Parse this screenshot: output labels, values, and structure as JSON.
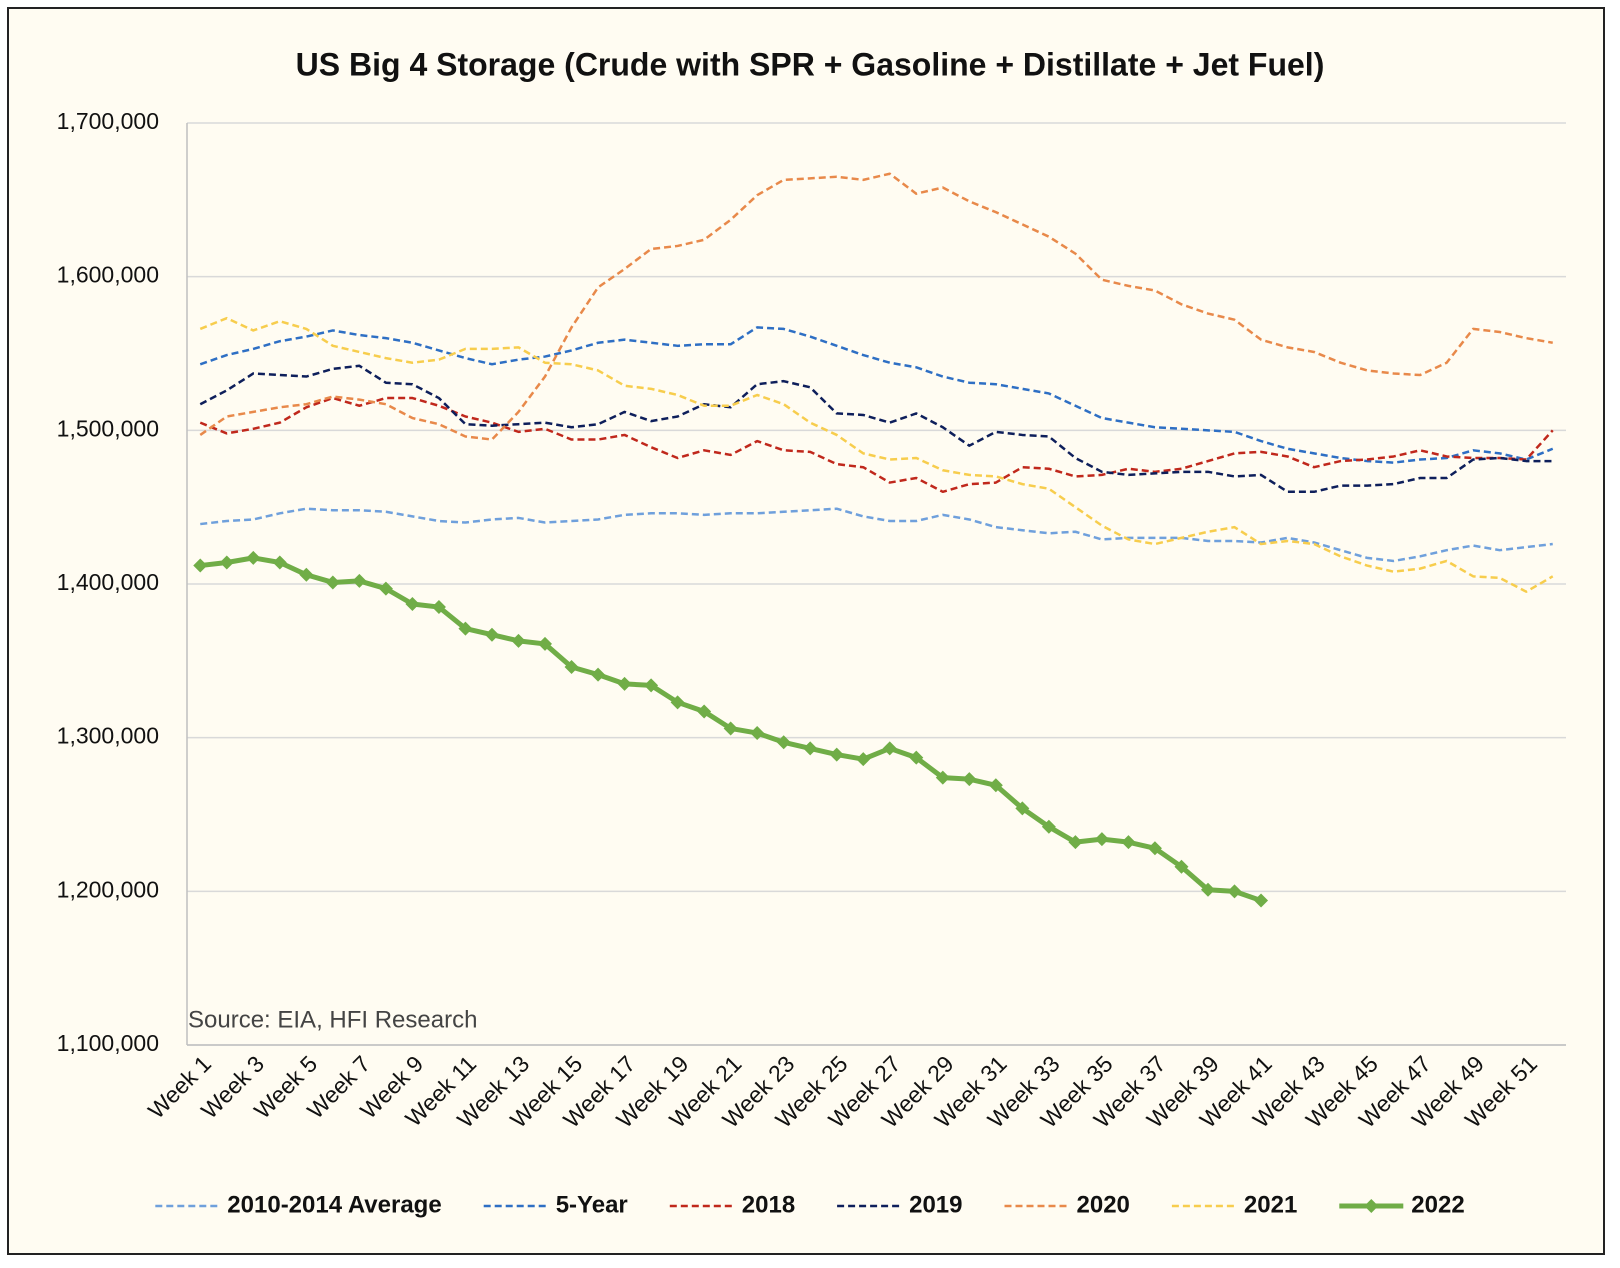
{
  "chart_data": {
    "type": "line",
    "title": "US Big 4 Storage (Crude with SPR + Gasoline + Distillate + Jet Fuel)",
    "annotation": "Source: EIA, HFI Research",
    "categories": [
      "Week 1",
      null,
      "Week 3",
      null,
      "Week 5",
      null,
      "Week 7",
      null,
      "Week 9",
      null,
      "Week 11",
      null,
      "Week 13",
      null,
      "Week 15",
      null,
      "Week 17",
      null,
      "Week 19",
      null,
      "Week 21",
      null,
      "Week 23",
      null,
      "Week 25",
      null,
      "Week 27",
      null,
      "Week 29",
      null,
      "Week 31",
      null,
      "Week 33",
      null,
      "Week 35",
      null,
      "Week 37",
      null,
      "Week 39",
      null,
      "Week 41",
      null,
      "Week 43",
      null,
      "Week 45",
      null,
      "Week 47",
      null,
      "Week 49",
      null,
      "Week 51",
      null
    ],
    "ylim": [
      1100000,
      1700000
    ],
    "yticks": [
      {
        "value": 1100000,
        "label": "1,100,000"
      },
      {
        "value": 1200000,
        "label": "1,200,000"
      },
      {
        "value": 1300000,
        "label": "1,300,000"
      },
      {
        "value": 1400000,
        "label": "1,400,000"
      },
      {
        "value": 1500000,
        "label": "1,500,000"
      },
      {
        "value": 1600000,
        "label": "1,600,000"
      },
      {
        "value": 1700000,
        "label": "1,700,000"
      }
    ],
    "grid": true,
    "legend": "bottom",
    "series": [
      {
        "name": "2010-2014 Average",
        "color": "#6fa0dc",
        "dashed": true,
        "values": [
          1439000,
          1441000,
          1442000,
          1446000,
          1449000,
          1448000,
          1448000,
          1447000,
          1444000,
          1441000,
          1440000,
          1442000,
          1443000,
          1440000,
          1441000,
          1442000,
          1445000,
          1446000,
          1446000,
          1445000,
          1446000,
          1446000,
          1447000,
          1448000,
          1449000,
          1444000,
          1441000,
          1441000,
          1445000,
          1442000,
          1437000,
          1435000,
          1433000,
          1434000,
          1429000,
          1430000,
          1430000,
          1430000,
          1428000,
          1428000,
          1427000,
          1430000,
          1427000,
          1422000,
          1417000,
          1415000,
          1418000,
          1422000,
          1425000,
          1422000,
          1424000,
          1426000
        ]
      },
      {
        "name": "5-Year",
        "color": "#2e6fc4",
        "dashed": true,
        "values": [
          1543000,
          1549000,
          1553000,
          1558000,
          1561000,
          1565000,
          1562000,
          1560000,
          1557000,
          1552000,
          1547000,
          1543000,
          1546000,
          1548000,
          1552000,
          1557000,
          1559000,
          1557000,
          1555000,
          1556000,
          1556000,
          1567000,
          1566000,
          1561000,
          1555000,
          1549000,
          1544000,
          1541000,
          1535000,
          1531000,
          1530000,
          1527000,
          1524000,
          1516000,
          1508000,
          1505000,
          1502000,
          1501000,
          1500000,
          1499000,
          1493000,
          1488000,
          1485000,
          1482000,
          1480000,
          1479000,
          1481000,
          1482000,
          1487000,
          1485000,
          1481000,
          1488000
        ]
      },
      {
        "name": "2018",
        "color": "#c0281c",
        "dashed": true,
        "values": [
          1505000,
          1498000,
          1501000,
          1505000,
          1515000,
          1521000,
          1516000,
          1521000,
          1521000,
          1516000,
          1509000,
          1505000,
          1499000,
          1501000,
          1494000,
          1494000,
          1497000,
          1489000,
          1482000,
          1487000,
          1484000,
          1493000,
          1487000,
          1486000,
          1478000,
          1476000,
          1466000,
          1469000,
          1460000,
          1465000,
          1466000,
          1476000,
          1475000,
          1470000,
          1471000,
          1475000,
          1473000,
          1475000,
          1480000,
          1485000,
          1486000,
          1483000,
          1476000,
          1480000,
          1481000,
          1483000,
          1487000,
          1483000,
          1482000,
          1482000,
          1481000,
          1500000
        ]
      },
      {
        "name": "2019",
        "color": "#0e1f5b",
        "dashed": true,
        "values": [
          1517000,
          1526000,
          1537000,
          1536000,
          1535000,
          1540000,
          1542000,
          1531000,
          1530000,
          1521000,
          1504000,
          1503000,
          1504000,
          1505000,
          1502000,
          1504000,
          1512000,
          1506000,
          1509000,
          1517000,
          1515000,
          1530000,
          1532000,
          1528000,
          1511000,
          1510000,
          1505000,
          1511000,
          1502000,
          1490000,
          1499000,
          1497000,
          1496000,
          1482000,
          1473000,
          1471000,
          1472000,
          1473000,
          1473000,
          1470000,
          1471000,
          1460000,
          1460000,
          1464000,
          1464000,
          1465000,
          1469000,
          1469000,
          1481000,
          1482000,
          1480000,
          1480000
        ]
      },
      {
        "name": "2020",
        "color": "#e8894a",
        "dashed": true,
        "values": [
          1497000,
          1509000,
          1512000,
          1515000,
          1517000,
          1522000,
          1520000,
          1517000,
          1508000,
          1504000,
          1496000,
          1494000,
          1512000,
          1535000,
          1567000,
          1593000,
          1605000,
          1618000,
          1620000,
          1624000,
          1637000,
          1653000,
          1663000,
          1664000,
          1665000,
          1663000,
          1667000,
          1654000,
          1658000,
          1649000,
          1642000,
          1634000,
          1626000,
          1615000,
          1598000,
          1594000,
          1591000,
          1582000,
          1576000,
          1572000,
          1559000,
          1554000,
          1551000,
          1544000,
          1539000,
          1537000,
          1536000,
          1544000,
          1566000,
          1564000,
          1560000,
          1557000
        ]
      },
      {
        "name": "2021",
        "color": "#f7cd4d",
        "dashed": true,
        "values": [
          1566000,
          1573000,
          1565000,
          1571000,
          1566000,
          1555000,
          1551000,
          1547000,
          1544000,
          1546000,
          1553000,
          1553000,
          1554000,
          1544000,
          1543000,
          1539000,
          1529000,
          1527000,
          1523000,
          1516000,
          1516000,
          1523000,
          1517000,
          1505000,
          1497000,
          1485000,
          1481000,
          1482000,
          1474000,
          1471000,
          1470000,
          1465000,
          1462000,
          1450000,
          1438000,
          1429000,
          1426000,
          1430000,
          1434000,
          1437000,
          1426000,
          1428000,
          1426000,
          1418000,
          1412000,
          1408000,
          1410000,
          1415000,
          1405000,
          1404000,
          1395000,
          1405000
        ]
      },
      {
        "name": "2022",
        "color": "#70ad47",
        "dashed": false,
        "marker": "diamond",
        "values": [
          1412000,
          1414000,
          1417000,
          1414000,
          1406000,
          1401000,
          1402000,
          1397000,
          1387000,
          1385000,
          1371000,
          1367000,
          1363000,
          1361000,
          1346000,
          1341000,
          1335000,
          1334000,
          1323000,
          1317000,
          1306000,
          1303000,
          1297000,
          1293000,
          1289000,
          1286000,
          1293000,
          1287000,
          1274000,
          1273000,
          1269000,
          1254000,
          1242000,
          1232000,
          1234000,
          1232000,
          1228000,
          1216000,
          1201000,
          1200000,
          1194000,
          null,
          null,
          null,
          null,
          null,
          null,
          null,
          null,
          null,
          null,
          null
        ]
      }
    ]
  }
}
